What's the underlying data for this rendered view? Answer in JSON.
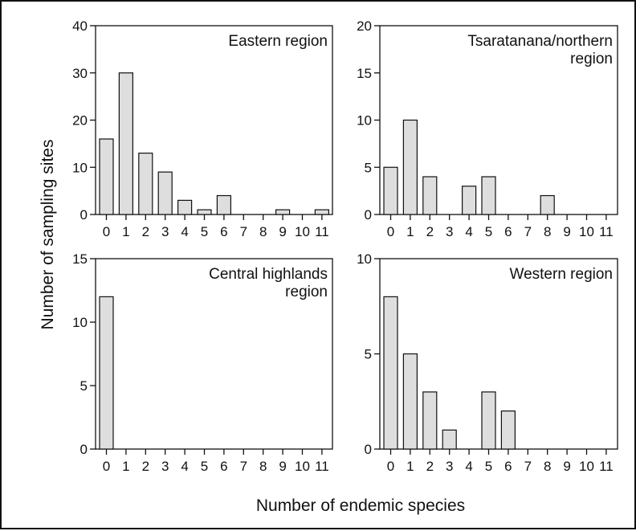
{
  "chart_data": [
    {
      "type": "bar",
      "title": "Eastern region",
      "categories": [
        "0",
        "1",
        "2",
        "3",
        "4",
        "5",
        "6",
        "7",
        "8",
        "9",
        "10",
        "11"
      ],
      "values": [
        16,
        30,
        13,
        9,
        3,
        1,
        4,
        0,
        0,
        1,
        0,
        1
      ],
      "ylim": [
        0,
        40
      ],
      "yticks": [
        0,
        10,
        20,
        30,
        40
      ]
    },
    {
      "type": "bar",
      "title": "Tsaratanana/northern region",
      "title_lines": [
        "Tsaratanana/northern",
        "region"
      ],
      "categories": [
        "0",
        "1",
        "2",
        "3",
        "4",
        "5",
        "6",
        "7",
        "8",
        "9",
        "10",
        "11"
      ],
      "values": [
        5,
        10,
        4,
        0,
        3,
        4,
        0,
        0,
        2,
        0,
        0,
        0
      ],
      "ylim": [
        0,
        20
      ],
      "yticks": [
        0,
        5,
        10,
        15,
        20
      ]
    },
    {
      "type": "bar",
      "title": "Central highlands region",
      "title_lines": [
        "Central highlands",
        "region"
      ],
      "categories": [
        "0",
        "1",
        "2",
        "3",
        "4",
        "5",
        "6",
        "7",
        "8",
        "9",
        "10",
        "11"
      ],
      "values": [
        12,
        0,
        0,
        0,
        0,
        0,
        0,
        0,
        0,
        0,
        0,
        0
      ],
      "ylim": [
        0,
        15
      ],
      "yticks": [
        0,
        5,
        10,
        15
      ]
    },
    {
      "type": "bar",
      "title": "Western region",
      "categories": [
        "0",
        "1",
        "2",
        "3",
        "4",
        "5",
        "6",
        "7",
        "8",
        "9",
        "10",
        "11"
      ],
      "values": [
        8,
        5,
        3,
        1,
        0,
        3,
        2,
        0,
        0,
        0,
        0,
        0
      ],
      "ylim": [
        0,
        10
      ],
      "yticks": [
        0,
        5,
        10
      ]
    }
  ],
  "xlabel": "Number of endemic species",
  "ylabel": "Number of sampling sites"
}
